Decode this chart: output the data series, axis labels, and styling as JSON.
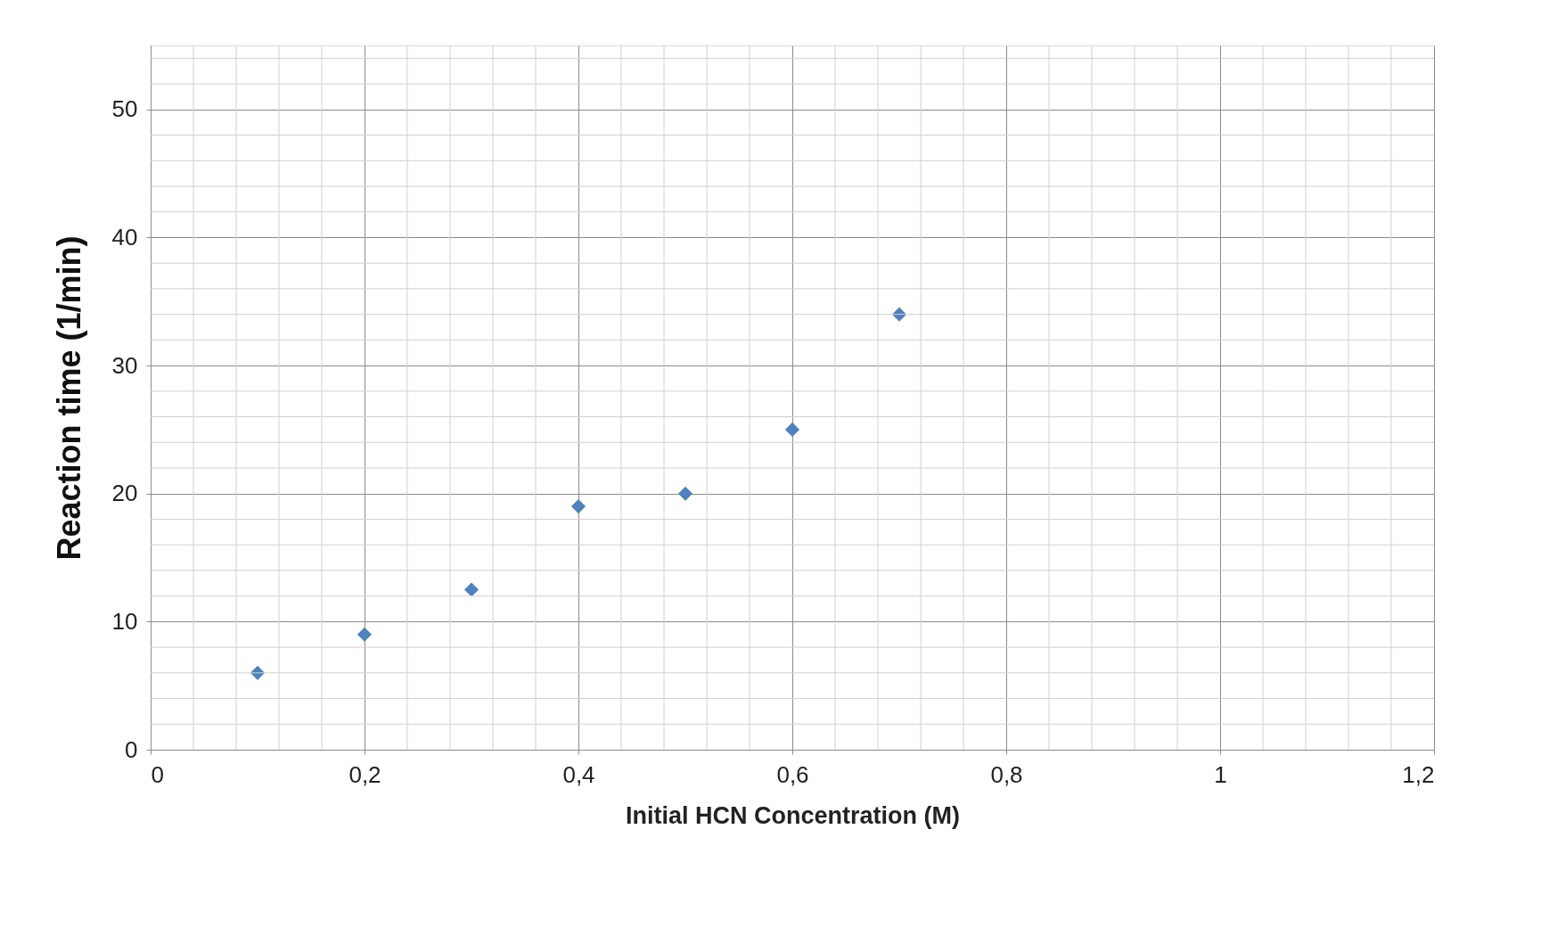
{
  "chart_data": {
    "type": "scatter",
    "xlabel": "Initial HCN Concentration (M)",
    "ylabel": "Reaction time (1/min)",
    "x": [
      0.1,
      0.2,
      0.3,
      0.4,
      0.5,
      0.6,
      0.7
    ],
    "series": [
      {
        "color": "#4f81bd",
        "values": [
          6,
          9,
          12.5,
          19,
          20,
          25,
          34
        ]
      }
    ],
    "xlim": [
      0,
      1.2
    ],
    "ylim": [
      0,
      55
    ],
    "xticks": [
      0,
      {
        "value": 0.2,
        "label": "0,2"
      },
      {
        "value": 0.4,
        "label": "0,4"
      },
      {
        "value": 0.6,
        "label": "0,6"
      },
      {
        "value": 0.8,
        "label": "0,8"
      },
      1,
      {
        "value": 1.2,
        "label": "1,2"
      }
    ],
    "yticks": [
      0,
      10,
      20,
      30,
      40,
      50
    ],
    "grid": true,
    "marker": "diamond"
  }
}
